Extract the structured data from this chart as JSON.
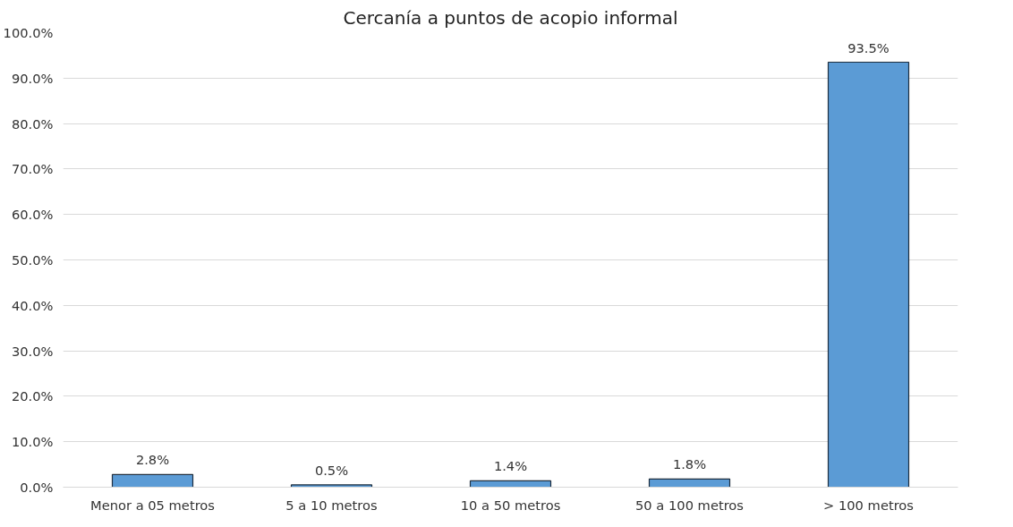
{
  "chart_data": {
    "type": "bar",
    "title": "Cercanía a puntos de acopio informal",
    "categories": [
      "Menor a 05 metros",
      "5 a 10 metros",
      "10 a 50 metros",
      "50 a 100 metros",
      "> 100 metros"
    ],
    "values": [
      2.8,
      0.5,
      1.4,
      1.8,
      93.5
    ],
    "value_labels": [
      "2.8%",
      "0.5%",
      "1.4%",
      "1.8%",
      "93.5%"
    ],
    "color": "#5b9bd5",
    "ylim": [
      0,
      100
    ],
    "yticks": [
      {
        "value": 0,
        "label": "0.0%"
      },
      {
        "value": 10,
        "label": "10.0%"
      },
      {
        "value": 20,
        "label": "20.0%"
      },
      {
        "value": 30,
        "label": "30.0%"
      },
      {
        "value": 40,
        "label": "40.0%"
      },
      {
        "value": 50,
        "label": "50.0%"
      },
      {
        "value": 60,
        "label": "60.0%"
      },
      {
        "value": 70,
        "label": "70.0%"
      },
      {
        "value": 80,
        "label": "80.0%"
      },
      {
        "value": 90,
        "label": "90.0%"
      },
      {
        "value": 100,
        "label": "100.0%"
      }
    ],
    "grid": "y"
  }
}
